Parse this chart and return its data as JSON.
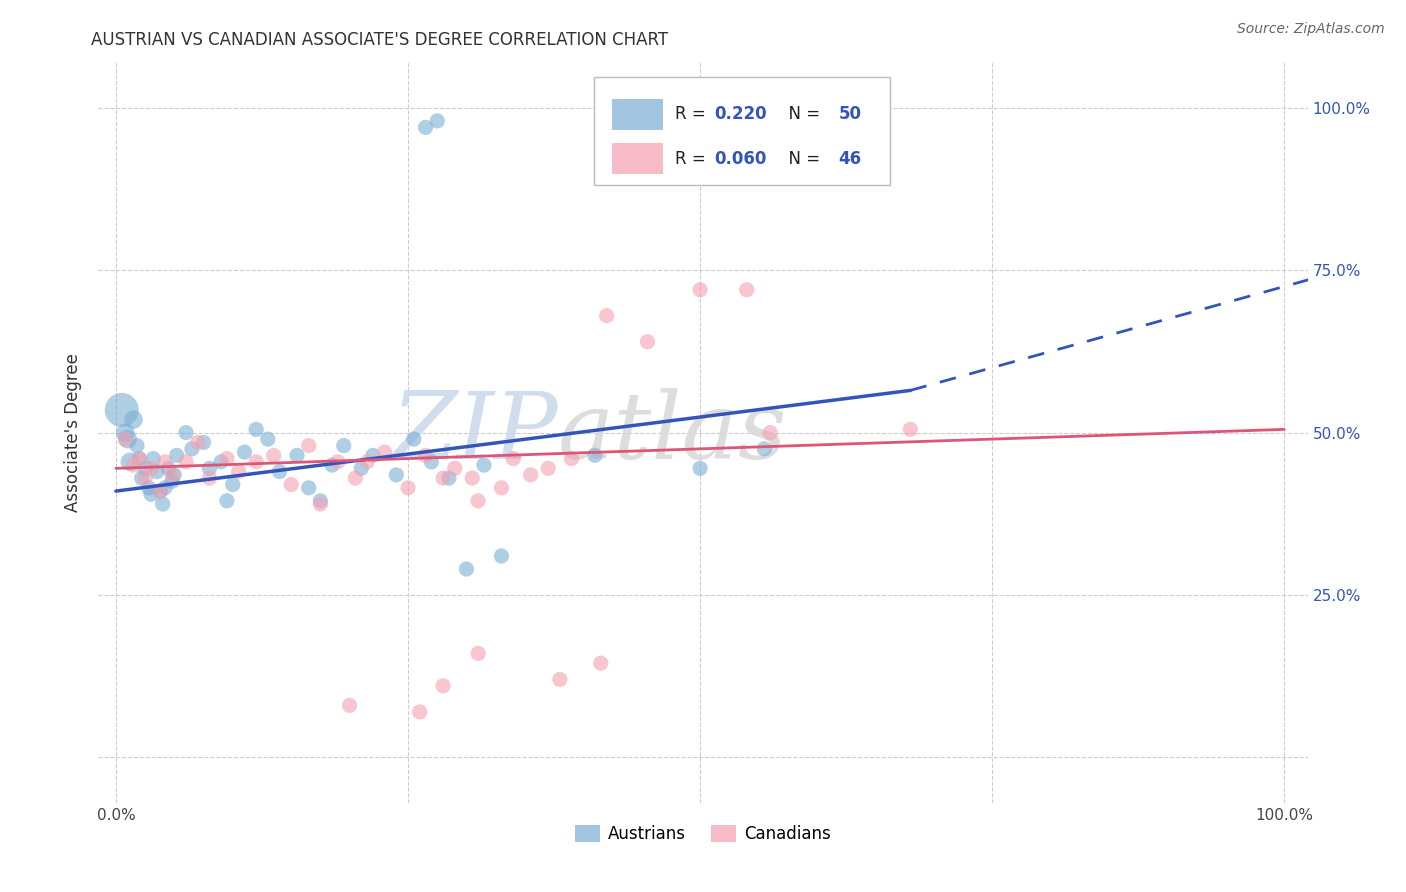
{
  "title": "AUSTRIAN VS CANADIAN ASSOCIATE'S DEGREE CORRELATION CHART",
  "source": "Source: ZipAtlas.com",
  "ylabel": "Associate's Degree",
  "blue_color": "#7BAFD4",
  "pink_color": "#F4A0B0",
  "blue_line_color": "#3355BB",
  "pink_line_color": "#DD5577",
  "blue_r": "0.220",
  "blue_n": "50",
  "pink_r": "0.060",
  "pink_n": "46",
  "watermark_zip": "ZIP",
  "watermark_atlas": "atlas",
  "background_color": "#FFFFFF",
  "grid_color": "#CCCCCC",
  "right_tick_color": "#3355BB",
  "title_color": "#333333",
  "text_color": "#333333",
  "source_color": "#666666"
}
